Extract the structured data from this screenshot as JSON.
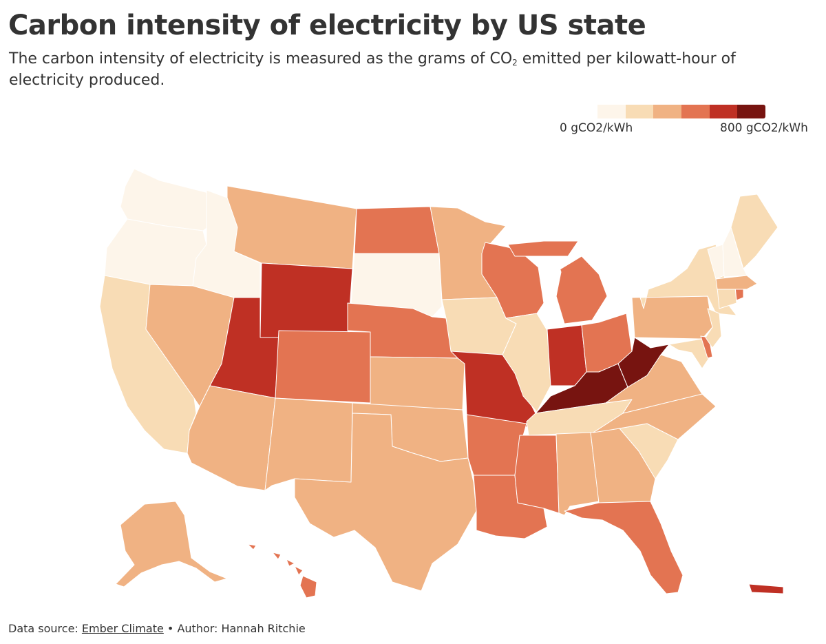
{
  "title": "Carbon intensity of electricity by US state",
  "subtitle_before": "The carbon intensity of electricity is measured as the grams of CO",
  "subtitle_sub": "2",
  "subtitle_after": " emitted per kilowatt-hour of electricity produced.",
  "legend": {
    "min_label": "0 gCO2/kWh",
    "max_label": "800 gCO2/kWh",
    "colors": [
      "#fdf5ea",
      "#f8dcb5",
      "#f0b283",
      "#e37452",
      "#bf3024",
      "#771410"
    ]
  },
  "footer": {
    "source_prefix": "Data source: ",
    "source_name": "Ember Climate",
    "author_text": " • Author: Hannah Ritchie"
  },
  "states": {
    "WA": 0,
    "OR": 0,
    "ID": 0,
    "SD": 0,
    "VT": 0,
    "NH": 0,
    "CA": 1,
    "IA": 1,
    "IL": 1,
    "NY": 1,
    "ME": 1,
    "TN": 1,
    "SC": 1,
    "CT": 1,
    "NJ": 1,
    "MD": 1,
    "NV": 2,
    "AZ": 2,
    "MT": 2,
    "NM": 2,
    "TX": 2,
    "OK": 2,
    "KS": 2,
    "MN": 2,
    "AL": 2,
    "GA": 2,
    "NC": 2,
    "VA": 2,
    "PA": 2,
    "MA": 2,
    "AK": 2,
    "ND": 3,
    "NE": 3,
    "CO": 3,
    "AR": 3,
    "LA": 3,
    "MS": 3,
    "WI": 3,
    "MI": 3,
    "OH": 3,
    "FL": 3,
    "DE": 3,
    "RI": 3,
    "HI": 3,
    "UT": 4,
    "WY": 4,
    "MO": 4,
    "IN": 4,
    "PR": 4,
    "KY": 5,
    "WV": 5
  }
}
